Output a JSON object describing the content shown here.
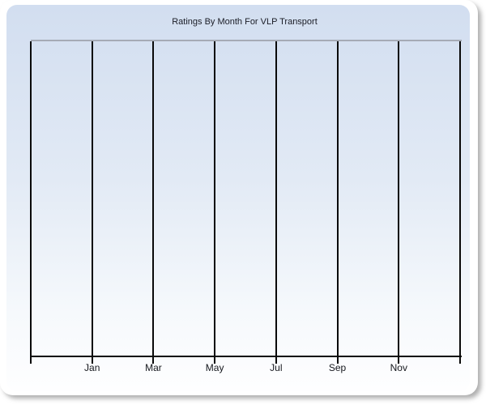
{
  "chart_data": {
    "type": "line",
    "title": "Ratings By Month For VLP Transport",
    "categories": [
      "Jan",
      "Mar",
      "May",
      "Jul",
      "Sep",
      "Nov"
    ],
    "series": [],
    "values": [],
    "xlabel": "",
    "ylabel": "",
    "grid": "vertical-only",
    "legend": "none",
    "plot_empty": true
  },
  "colors": {
    "card_bg": "#ffffff",
    "panel_top": "#d2def0",
    "panel_bottom": "#fefeff",
    "plot_top_border": "#a6abb5",
    "grid_line": "#0a0a0a",
    "axis_line": "#0a0a0a",
    "title_text": "#1b1d26",
    "tick_text": "#15171d"
  }
}
